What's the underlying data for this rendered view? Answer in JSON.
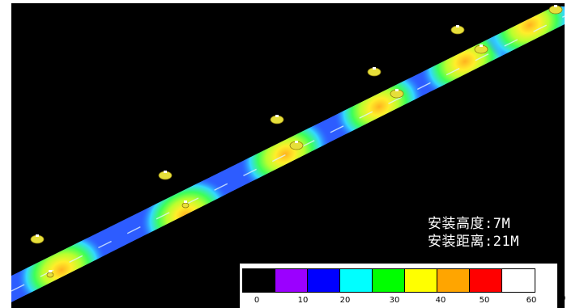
{
  "info": {
    "install_height": "安装高度:7M",
    "install_spacing": "安装距离:21M"
  },
  "legend": {
    "colors": [
      "#000000",
      "#9b00ff",
      "#0000ff",
      "#00ffff",
      "#00ff00",
      "#ffff00",
      "#ffa500",
      "#ff0000",
      "#ffffff"
    ],
    "ticks": [
      "0",
      "10",
      "20",
      "30",
      "40",
      "50",
      "60"
    ],
    "edge_tick": "0"
  },
  "road_colors": {
    "low": "#1f4fff",
    "mid_low": "#37c9ff",
    "mid": "#33ff66",
    "high": "#ffff33",
    "peak": "#ffae1a"
  }
}
